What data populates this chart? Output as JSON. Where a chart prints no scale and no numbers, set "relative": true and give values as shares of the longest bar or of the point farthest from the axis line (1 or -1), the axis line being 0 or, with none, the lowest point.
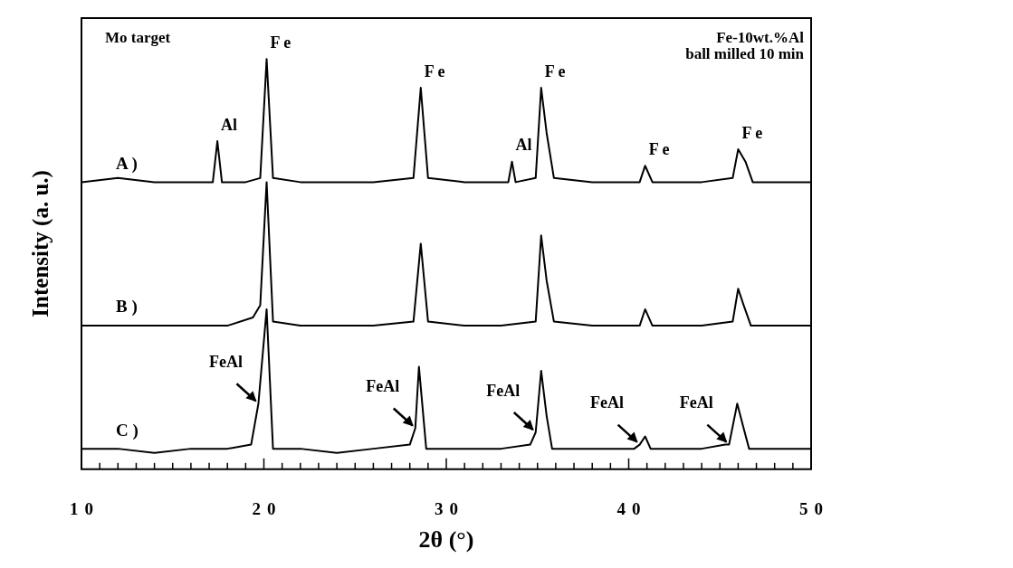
{
  "chart_data": {
    "type": "line",
    "relative": true,
    "xlabel": "2θ (°)",
    "ylabel": "Intensity (a. u.)",
    "xlim": [
      10,
      50
    ],
    "xticks": [
      10,
      {
        "value": 11,
        "label": null
      },
      {
        "value": 12,
        "label": null
      },
      {
        "value": 13,
        "label": null
      },
      {
        "value": 14,
        "label": null
      },
      {
        "value": 15,
        "label": null
      },
      {
        "value": 16,
        "label": null
      },
      {
        "value": 17,
        "label": null
      },
      {
        "value": 18,
        "label": null
      },
      {
        "value": 19,
        "label": null
      },
      20,
      {
        "value": 21,
        "label": null
      },
      {
        "value": 22,
        "label": null
      },
      {
        "value": 23,
        "label": null
      },
      {
        "value": 24,
        "label": null
      },
      {
        "value": 25,
        "label": null
      },
      {
        "value": 26,
        "label": null
      },
      {
        "value": 27,
        "label": null
      },
      {
        "value": 28,
        "label": null
      },
      {
        "value": 29,
        "label": null
      },
      30,
      {
        "value": 31,
        "label": null
      },
      {
        "value": 32,
        "label": null
      },
      {
        "value": 33,
        "label": null
      },
      {
        "value": 34,
        "label": null
      },
      {
        "value": 35,
        "label": null
      },
      {
        "value": 36,
        "label": null
      },
      {
        "value": 37,
        "label": null
      },
      {
        "value": 38,
        "label": null
      },
      {
        "value": 39,
        "label": null
      },
      40,
      {
        "value": 41,
        "label": null
      },
      {
        "value": 42,
        "label": null
      },
      {
        "value": 43,
        "label": null
      },
      {
        "value": 44,
        "label": null
      },
      {
        "value": 45,
        "label": null
      },
      {
        "value": 46,
        "label": null
      },
      {
        "value": 47,
        "label": null
      },
      {
        "value": 48,
        "label": null
      },
      {
        "value": 49,
        "label": null
      },
      50
    ],
    "grid": false,
    "legend": false,
    "marker": "none",
    "line_style": "solid",
    "series": [
      {
        "name": "A )",
        "color": "#000000",
        "x": [
          10,
          12,
          14,
          16,
          17.2,
          17.45,
          17.7,
          19,
          19.8,
          20.15,
          20.5,
          22,
          24,
          26,
          28.2,
          28.6,
          29,
          31,
          33.4,
          33.6,
          33.8,
          34.9,
          35.2,
          35.5,
          35.9,
          38,
          40.6,
          40.9,
          41.3,
          44,
          45.7,
          46.0,
          46.4,
          46.8,
          48,
          50
        ],
        "values": [
          0.7,
          0.71,
          0.7,
          0.7,
          0.7,
          0.8,
          0.7,
          0.7,
          0.71,
          1.0,
          0.71,
          0.7,
          0.7,
          0.7,
          0.71,
          0.93,
          0.71,
          0.7,
          0.7,
          0.75,
          0.7,
          0.71,
          0.93,
          0.82,
          0.71,
          0.7,
          0.7,
          0.74,
          0.7,
          0.7,
          0.71,
          0.78,
          0.75,
          0.7,
          0.7,
          0.7
        ]
      },
      {
        "name": "B )",
        "color": "#000000",
        "x": [
          10,
          12,
          14,
          16,
          18,
          19.4,
          19.8,
          20.15,
          20.5,
          22,
          24,
          26,
          28.2,
          28.6,
          29,
          31,
          33,
          34.9,
          35.2,
          35.5,
          35.9,
          38,
          40.6,
          40.9,
          41.3,
          44,
          45.7,
          46.0,
          46.3,
          46.7,
          48,
          50
        ],
        "values": [
          0.35,
          0.35,
          0.35,
          0.35,
          0.35,
          0.37,
          0.4,
          0.7,
          0.36,
          0.35,
          0.35,
          0.35,
          0.36,
          0.55,
          0.36,
          0.35,
          0.35,
          0.36,
          0.57,
          0.46,
          0.36,
          0.35,
          0.35,
          0.39,
          0.35,
          0.35,
          0.36,
          0.44,
          0.4,
          0.35,
          0.35,
          0.35
        ]
      },
      {
        "name": "C )",
        "color": "#000000",
        "x": [
          10,
          12,
          14,
          16,
          18,
          19.3,
          19.7,
          20.15,
          20.5,
          22,
          24,
          26,
          28.0,
          28.3,
          28.5,
          28.9,
          31,
          33,
          34.6,
          34.9,
          35.2,
          35.5,
          35.8,
          38,
          40.3,
          40.6,
          40.9,
          41.2,
          44,
          45.3,
          45.5,
          45.95,
          46.3,
          46.6,
          48,
          50
        ],
        "values": [
          0.05,
          0.05,
          0.04,
          0.05,
          0.05,
          0.06,
          0.16,
          0.39,
          0.05,
          0.05,
          0.04,
          0.05,
          0.06,
          0.1,
          0.25,
          0.05,
          0.05,
          0.05,
          0.06,
          0.09,
          0.24,
          0.13,
          0.05,
          0.05,
          0.05,
          0.06,
          0.08,
          0.05,
          0.05,
          0.06,
          0.06,
          0.16,
          0.1,
          0.05,
          0.05,
          0.05
        ]
      }
    ],
    "annotations": [
      "Mo target",
      "Fe-10wt.%Al\nball milled 10 min",
      {
        "text": "Al",
        "x": 17.45,
        "y": 0.8
      },
      {
        "text": "F e",
        "x": 20.15,
        "y": 1.0
      },
      {
        "text": "F e",
        "x": 28.6,
        "y": 0.93
      },
      {
        "text": "Al",
        "x": 33.6,
        "y": 0.75
      },
      {
        "text": "F e",
        "x": 35.2,
        "y": 0.93
      },
      {
        "text": "F e",
        "x": 40.9,
        "y": 0.74
      },
      {
        "text": "F e",
        "x": 46.0,
        "y": 0.78
      },
      {
        "text": "FeAl",
        "x": 19.7,
        "y": 0.16
      },
      {
        "text": "FeAl",
        "x": 28.3,
        "y": 0.1
      },
      {
        "text": "FeAl",
        "x": 34.9,
        "y": 0.09
      },
      {
        "text": "FeAl",
        "x": 40.6,
        "y": 0.06
      },
      {
        "text": "FeAl",
        "x": 45.5,
        "y": 0.06
      }
    ]
  }
}
